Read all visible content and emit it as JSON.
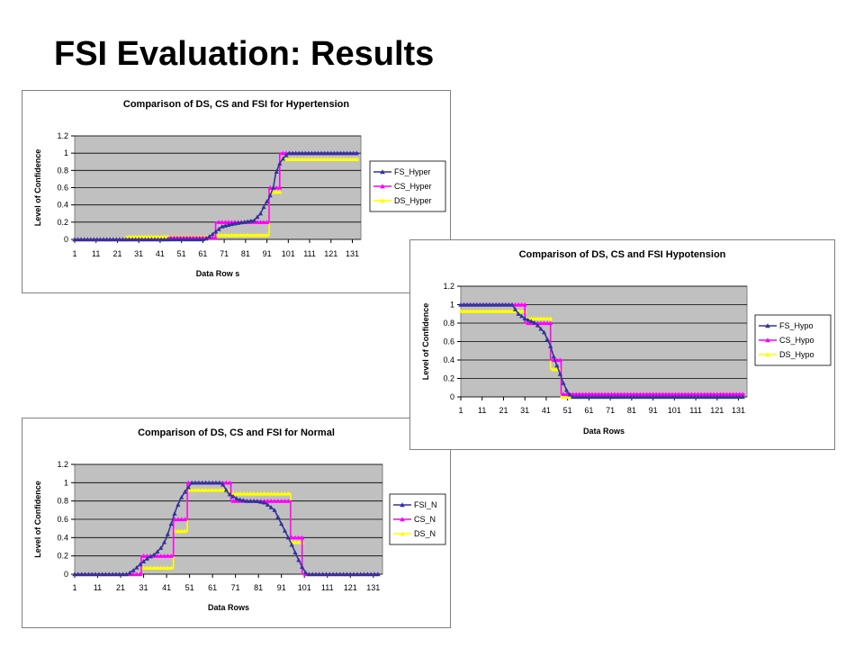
{
  "slide": {
    "title": "FSI Evaluation: Results"
  },
  "chart_data": [
    {
      "id": "hyper",
      "type": "line",
      "title": "Comparison of DS, CS and FSI for Hypertension",
      "xlabel": "Data Row s",
      "ylabel": "Level of Confidence",
      "ylim": [
        0,
        1.2
      ],
      "yticks": [
        0,
        0.2,
        0.4,
        0.6,
        0.8,
        1,
        1.2
      ],
      "xlim": [
        1,
        135
      ],
      "xticks": [
        1,
        11,
        21,
        31,
        41,
        51,
        61,
        71,
        81,
        91,
        101,
        111,
        121,
        131
      ],
      "plot_background": "#c0c0c0",
      "grid": true,
      "legend_position": "right",
      "series": [
        {
          "name": "FS_Hyper",
          "color": "#333399",
          "marker": "triangle",
          "points": [
            [
              1,
              0
            ],
            [
              30,
              0
            ],
            [
              45,
              0
            ],
            [
              62,
              0
            ],
            [
              65,
              0.05
            ],
            [
              70,
              0.15
            ],
            [
              75,
              0.18
            ],
            [
              80,
              0.2
            ],
            [
              85,
              0.22
            ],
            [
              88,
              0.3
            ],
            [
              90,
              0.4
            ],
            [
              92,
              0.48
            ],
            [
              94,
              0.6
            ],
            [
              95,
              0.75
            ],
            [
              96,
              0.82
            ],
            [
              97,
              0.88
            ],
            [
              98,
              0.92
            ],
            [
              99,
              0.95
            ],
            [
              101,
              1
            ],
            [
              134,
              1
            ]
          ]
        },
        {
          "name": "CS_Hyper",
          "color": "#ff00ff",
          "marker": "triangle",
          "points": [
            [
              1,
              0
            ],
            [
              45,
              0
            ],
            [
              45,
              0.02
            ],
            [
              67,
              0.02
            ],
            [
              67,
              0.2
            ],
            [
              92,
              0.2
            ],
            [
              92,
              0.6
            ],
            [
              97,
              0.6
            ],
            [
              97,
              1
            ],
            [
              134,
              1
            ]
          ]
        },
        {
          "name": "DS_Hyper",
          "color": "#ffff00",
          "marker": "triangle",
          "points": [
            [
              1,
              0
            ],
            [
              25,
              0
            ],
            [
              25,
              0.03
            ],
            [
              67,
              0.03
            ],
            [
              67,
              0.05
            ],
            [
              92,
              0.05
            ],
            [
              92,
              0.55
            ],
            [
              97,
              0.55
            ],
            [
              97,
              0.93
            ],
            [
              134,
              0.93
            ]
          ]
        }
      ]
    },
    {
      "id": "hypo",
      "type": "line",
      "title": "Comparison of DS, CS and FSI Hypotension",
      "xlabel": "Data Rows",
      "ylabel": "Level of Confidence",
      "ylim": [
        0,
        1.2
      ],
      "yticks": [
        0,
        0.2,
        0.4,
        0.6,
        0.8,
        1,
        1.2
      ],
      "xlim": [
        1,
        135
      ],
      "xticks": [
        1,
        11,
        21,
        31,
        41,
        51,
        61,
        71,
        81,
        91,
        101,
        111,
        121,
        131
      ],
      "plot_background": "#c0c0c0",
      "grid": true,
      "legend_position": "right",
      "series": [
        {
          "name": "FS_Hypo",
          "color": "#333399",
          "marker": "triangle",
          "points": [
            [
              1,
              1
            ],
            [
              25,
              1
            ],
            [
              28,
              0.9
            ],
            [
              31,
              0.85
            ],
            [
              36,
              0.8
            ],
            [
              40,
              0.7
            ],
            [
              43,
              0.55
            ],
            [
              45,
              0.4
            ],
            [
              47,
              0.28
            ],
            [
              49,
              0.15
            ],
            [
              51,
              0.05
            ],
            [
              53,
              0
            ],
            [
              134,
              0
            ]
          ]
        },
        {
          "name": "CS_Hypo",
          "color": "#ff00ff",
          "marker": "triangle",
          "points": [
            [
              1,
              1
            ],
            [
              31,
              1
            ],
            [
              31,
              0.8
            ],
            [
              43,
              0.8
            ],
            [
              43,
              0.4
            ],
            [
              48,
              0.4
            ],
            [
              48,
              0.03
            ],
            [
              134,
              0.03
            ]
          ]
        },
        {
          "name": "DS_Hypo",
          "color": "#ffff00",
          "marker": "triangle",
          "points": [
            [
              1,
              0.93
            ],
            [
              31,
              0.93
            ],
            [
              31,
              0.85
            ],
            [
              43,
              0.85
            ],
            [
              43,
              0.3
            ],
            [
              48,
              0.3
            ],
            [
              48,
              0
            ],
            [
              134,
              0
            ]
          ]
        }
      ]
    },
    {
      "id": "normal",
      "type": "line",
      "title": "Comparison of DS, CS and FSI for Normal",
      "xlabel": "Data Rows",
      "ylabel": "Level of Confidence",
      "ylim": [
        0,
        1.2
      ],
      "yticks": [
        0,
        0.2,
        0.4,
        0.6,
        0.8,
        1,
        1.2
      ],
      "xlim": [
        1,
        135
      ],
      "xticks": [
        1,
        11,
        21,
        31,
        41,
        51,
        61,
        71,
        81,
        91,
        101,
        111,
        121,
        131
      ],
      "plot_background": "#c0c0c0",
      "grid": true,
      "legend_position": "right",
      "series": [
        {
          "name": "FSI_N",
          "color": "#333399",
          "marker": "triangle",
          "points": [
            [
              1,
              0
            ],
            [
              24,
              0
            ],
            [
              27,
              0.05
            ],
            [
              30,
              0.12
            ],
            [
              33,
              0.18
            ],
            [
              36,
              0.22
            ],
            [
              39,
              0.3
            ],
            [
              41,
              0.4
            ],
            [
              43,
              0.55
            ],
            [
              45,
              0.7
            ],
            [
              47,
              0.82
            ],
            [
              49,
              0.9
            ],
            [
              52,
              1
            ],
            [
              65,
              1
            ],
            [
              68,
              0.88
            ],
            [
              72,
              0.82
            ],
            [
              76,
              0.8
            ],
            [
              80,
              0.8
            ],
            [
              84,
              0.78
            ],
            [
              88,
              0.7
            ],
            [
              90,
              0.6
            ],
            [
              92,
              0.5
            ],
            [
              95,
              0.35
            ],
            [
              98,
              0.18
            ],
            [
              100,
              0.08
            ],
            [
              102,
              0
            ],
            [
              134,
              0
            ]
          ]
        },
        {
          "name": "CS_N",
          "color": "#ff00ff",
          "marker": "triangle",
          "points": [
            [
              1,
              0
            ],
            [
              30,
              0
            ],
            [
              30,
              0.2
            ],
            [
              44,
              0.2
            ],
            [
              44,
              0.6
            ],
            [
              50,
              0.6
            ],
            [
              50,
              1
            ],
            [
              69,
              1
            ],
            [
              69,
              0.8
            ],
            [
              95,
              0.8
            ],
            [
              95,
              0.4
            ],
            [
              100,
              0.4
            ],
            [
              100,
              0
            ],
            [
              134,
              0
            ]
          ]
        },
        {
          "name": "DS_N",
          "color": "#ffff00",
          "marker": "triangle",
          "points": [
            [
              1,
              0
            ],
            [
              30,
              0
            ],
            [
              30,
              0.07
            ],
            [
              44,
              0.07
            ],
            [
              44,
              0.47
            ],
            [
              50,
              0.47
            ],
            [
              50,
              0.92
            ],
            [
              68,
              0.92
            ],
            [
              68,
              0.88
            ],
            [
              95,
              0.88
            ],
            [
              95,
              0.35
            ],
            [
              100,
              0.35
            ],
            [
              100,
              0
            ],
            [
              134,
              0
            ]
          ]
        }
      ]
    }
  ]
}
